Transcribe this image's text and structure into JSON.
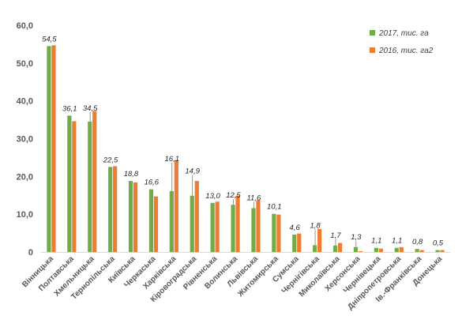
{
  "chart_data": {
    "type": "bar",
    "title": "",
    "xlabel": "",
    "ylabel": "",
    "ylim": [
      0,
      60
    ],
    "yticks": [
      "0",
      "10,0",
      "20,0",
      "30,0",
      "40,0",
      "50,0",
      "60,0"
    ],
    "grid": false,
    "legend_position": "top-right",
    "categories": [
      "Вінницька",
      "Полтавська",
      "Хмельницька",
      "Тернопільська",
      "Київська",
      "Черкаська",
      "Харківська",
      "Кіровоградська",
      "Рівненська",
      "Волинська",
      "Львівська",
      "Житомирська",
      "Сумська",
      "Чернігівська",
      "Миколаївська",
      "Херсонська",
      "Чернівецька",
      "Дніпропетровська",
      "Ів.-Франківська",
      "Донецька"
    ],
    "series": [
      {
        "name": "2017, тис. га",
        "color": "#70ad47",
        "values": [
          54.5,
          36.1,
          34.5,
          22.5,
          18.8,
          16.6,
          16.1,
          14.9,
          13.0,
          12.5,
          11.6,
          10.1,
          4.6,
          1.8,
          1.7,
          1.3,
          1.1,
          1.1,
          0.8,
          0.5
        ],
        "labels": [
          "54,5",
          "36,1",
          "34,5",
          "22,5",
          "18,8",
          "16,6",
          "16,1",
          "14,9",
          "13,0",
          "12,5",
          "11,6",
          "10,1",
          "4,6",
          "1,8",
          "1,7",
          "1,3",
          "1,1",
          "1,1",
          "0,8",
          "0,5"
        ]
      },
      {
        "name": "2016, тис. га2",
        "color": "#ed7d31",
        "values": [
          54.7,
          34.6,
          37.3,
          22.7,
          18.4,
          14.7,
          24.3,
          18.8,
          13.3,
          14.9,
          13.7,
          9.9,
          4.9,
          6.1,
          2.4,
          0.2,
          0.9,
          1.3,
          0.5,
          0.5
        ]
      }
    ],
    "label_offsets": [
      3,
      3,
      11,
      3,
      3,
      3,
      35,
      25,
      3,
      6,
      7,
      3,
      3,
      19,
      7,
      7,
      3,
      3,
      3,
      3
    ]
  }
}
